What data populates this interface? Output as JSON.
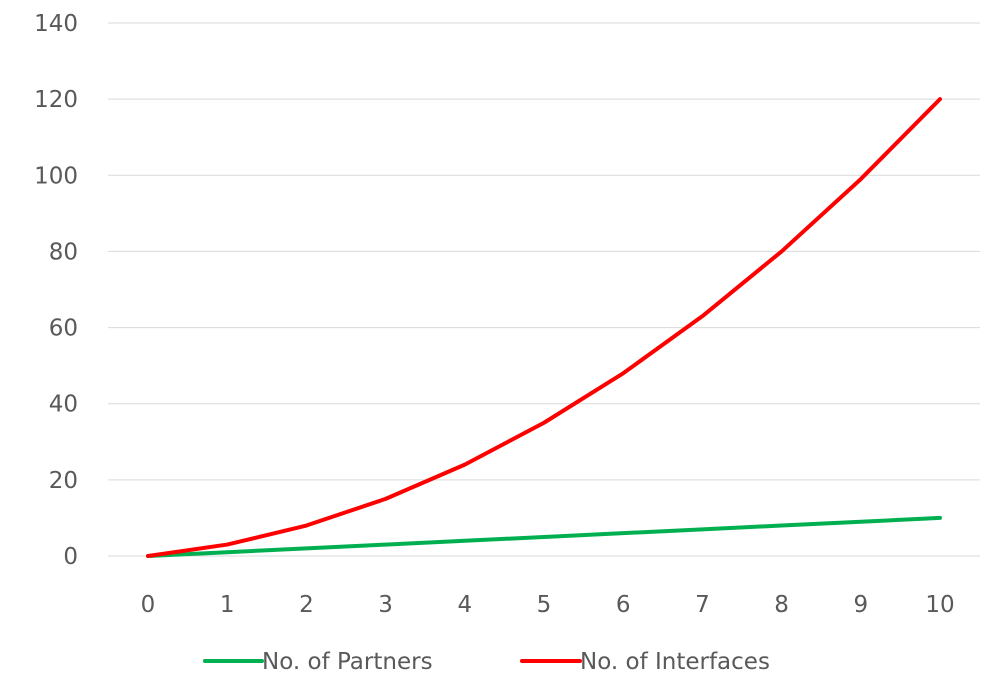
{
  "chart_data": {
    "type": "line",
    "x": [
      0,
      1,
      2,
      3,
      4,
      5,
      6,
      7,
      8,
      9,
      10
    ],
    "xlim": [
      0,
      10
    ],
    "ylim": [
      0,
      140
    ],
    "y_ticks": [
      0,
      20,
      40,
      60,
      80,
      100,
      120,
      140
    ],
    "x_tick_labels": [
      "0",
      "1",
      "2",
      "3",
      "4",
      "5",
      "6",
      "7",
      "8",
      "9",
      "10"
    ],
    "y_tick_labels": [
      "0",
      "20",
      "40",
      "60",
      "80",
      "100",
      "120",
      "140"
    ],
    "grid": true,
    "legend_position": "bottom",
    "series": [
      {
        "name": "No. of Partners",
        "color": "#00b050",
        "values": [
          0,
          1,
          2,
          3,
          4,
          5,
          6,
          7,
          8,
          9,
          10
        ]
      },
      {
        "name": "No. of Interfaces",
        "color": "#ff0000",
        "values": [
          0,
          3,
          8,
          15,
          24,
          35,
          48,
          63,
          80,
          99,
          120
        ]
      }
    ]
  }
}
